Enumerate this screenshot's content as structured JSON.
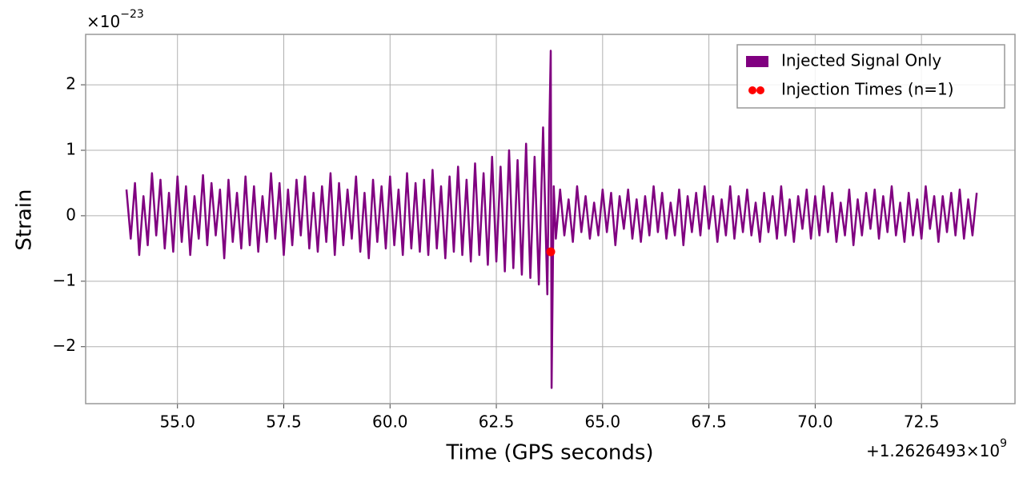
{
  "chart_data": {
    "type": "line",
    "xlabel": "Time (GPS seconds)",
    "ylabel": "Strain",
    "x_offset_base": "+1.2626493×10",
    "x_offset_exponent": "9",
    "y_offset_base": "×10",
    "y_offset_exponent": "−23",
    "xlim": [
      52.84,
      74.7
    ],
    "ylim": [
      -2.87,
      2.77
    ],
    "xticks": [
      {
        "value": 55,
        "label": "55.0"
      },
      {
        "value": 57.5,
        "label": "57.5"
      },
      {
        "value": 60,
        "label": "60.0"
      },
      {
        "value": 62.5,
        "label": "62.5"
      },
      {
        "value": 65,
        "label": "65.0"
      },
      {
        "value": 67.5,
        "label": "67.5"
      },
      {
        "value": 70,
        "label": "70.0"
      },
      {
        "value": 72.5,
        "label": "72.5"
      }
    ],
    "yticks": [
      {
        "value": -2,
        "label": "−2"
      },
      {
        "value": -1,
        "label": "−1"
      },
      0,
      1,
      2
    ],
    "grid": true,
    "legend": "upper right",
    "series": [
      {
        "name": "Injected Signal Only",
        "type": "line",
        "color": "#800080",
        "x": [
          53.8,
          53.9,
          54,
          54.1,
          54.2,
          54.3,
          54.4,
          54.5,
          54.6,
          54.7,
          54.8,
          54.9,
          55,
          55.1,
          55.2,
          55.3,
          55.4,
          55.5,
          55.6,
          55.7,
          55.8,
          55.9,
          56,
          56.1,
          56.2,
          56.3,
          56.4,
          56.5,
          56.6,
          56.7,
          56.8,
          56.9,
          57,
          57.1,
          57.2,
          57.3,
          57.4,
          57.5,
          57.6,
          57.7,
          57.8,
          57.9,
          58,
          58.1,
          58.2,
          58.3,
          58.4,
          58.5,
          58.6,
          58.7,
          58.8,
          58.9,
          59,
          59.1,
          59.2,
          59.3,
          59.4,
          59.5,
          59.6,
          59.7,
          59.8,
          59.9,
          60,
          60.1,
          60.2,
          60.3,
          60.4,
          60.5,
          60.6,
          60.7,
          60.8,
          60.9,
          61,
          61.1,
          61.2,
          61.3,
          61.4,
          61.5,
          61.6,
          61.7,
          61.8,
          61.9,
          62,
          62.1,
          62.2,
          62.3,
          62.4,
          62.5,
          62.6,
          62.7,
          62.8,
          62.9,
          63,
          63.1,
          63.2,
          63.3,
          63.4,
          63.5,
          63.6,
          63.7,
          63.75,
          63.78,
          63.8,
          63.85,
          63.9,
          64,
          64.1,
          64.2,
          64.3,
          64.4,
          64.5,
          64.6,
          64.7,
          64.8,
          64.9,
          65,
          65.1,
          65.2,
          65.3,
          65.4,
          65.5,
          65.6,
          65.7,
          65.8,
          65.9,
          66,
          66.1,
          66.2,
          66.3,
          66.4,
          66.5,
          66.6,
          66.7,
          66.8,
          66.9,
          67,
          67.1,
          67.2,
          67.3,
          67.4,
          67.5,
          67.6,
          67.7,
          67.8,
          67.9,
          68,
          68.1,
          68.2,
          68.3,
          68.4,
          68.5,
          68.6,
          68.7,
          68.8,
          68.9,
          69,
          69.1,
          69.2,
          69.3,
          69.4,
          69.5,
          69.6,
          69.7,
          69.8,
          69.9,
          70,
          70.1,
          70.2,
          70.3,
          70.4,
          70.5,
          70.6,
          70.7,
          70.8,
          70.9,
          71,
          71.1,
          71.2,
          71.3,
          71.4,
          71.5,
          71.6,
          71.7,
          71.8,
          71.9,
          72,
          72.1,
          72.2,
          72.3,
          72.4,
          72.5,
          72.6,
          72.7,
          72.8,
          72.9,
          73,
          73.1,
          73.2,
          73.3,
          73.4,
          73.5,
          73.6,
          73.7,
          73.8
        ],
        "values": [
          0.4,
          -0.35,
          0.5,
          -0.6,
          0.3,
          -0.45,
          0.65,
          -0.3,
          0.55,
          -0.5,
          0.35,
          -0.55,
          0.6,
          -0.4,
          0.45,
          -0.6,
          0.3,
          -0.35,
          0.62,
          -0.45,
          0.5,
          -0.3,
          0.4,
          -0.65,
          0.55,
          -0.4,
          0.35,
          -0.5,
          0.6,
          -0.45,
          0.45,
          -0.55,
          0.3,
          -0.4,
          0.65,
          -0.35,
          0.5,
          -0.6,
          0.4,
          -0.45,
          0.55,
          -0.3,
          0.6,
          -0.5,
          0.35,
          -0.55,
          0.45,
          -0.4,
          0.65,
          -0.6,
          0.5,
          -0.45,
          0.4,
          -0.35,
          0.6,
          -0.55,
          0.35,
          -0.65,
          0.55,
          -0.4,
          0.45,
          -0.5,
          0.6,
          -0.45,
          0.4,
          -0.6,
          0.65,
          -0.5,
          0.5,
          -0.55,
          0.55,
          -0.6,
          0.7,
          -0.5,
          0.45,
          -0.65,
          0.6,
          -0.55,
          0.75,
          -0.6,
          0.55,
          -0.7,
          0.8,
          -0.6,
          0.65,
          -0.75,
          0.9,
          -0.7,
          0.75,
          -0.85,
          1.0,
          -0.8,
          0.85,
          -0.9,
          1.1,
          -0.95,
          0.9,
          -1.05,
          1.35,
          -1.2,
          1.45,
          2.52,
          -2.63,
          0.45,
          -0.35,
          0.4,
          -0.3,
          0.25,
          -0.4,
          0.45,
          -0.25,
          0.3,
          -0.35,
          0.2,
          -0.3,
          0.4,
          -0.25,
          0.35,
          -0.45,
          0.3,
          -0.2,
          0.4,
          -0.35,
          0.25,
          -0.4,
          0.3,
          -0.3,
          0.45,
          -0.25,
          0.35,
          -0.35,
          0.2,
          -0.3,
          0.4,
          -0.45,
          0.3,
          -0.25,
          0.35,
          -0.3,
          0.45,
          -0.2,
          0.3,
          -0.4,
          0.25,
          -0.3,
          0.45,
          -0.35,
          0.3,
          -0.25,
          0.4,
          -0.3,
          0.2,
          -0.4,
          0.35,
          -0.25,
          0.3,
          -0.35,
          0.45,
          -0.3,
          0.25,
          -0.4,
          0.3,
          -0.2,
          0.4,
          -0.35,
          0.3,
          -0.3,
          0.45,
          -0.25,
          0.35,
          -0.4,
          0.2,
          -0.3,
          0.4,
          -0.45,
          0.25,
          -0.3,
          0.35,
          -0.2,
          0.4,
          -0.35,
          0.3,
          -0.25,
          0.45,
          -0.3,
          0.2,
          -0.4,
          0.35,
          -0.3,
          0.25,
          -0.35,
          0.45,
          -0.2,
          0.3,
          -0.4,
          0.3,
          -0.25,
          0.35,
          -0.3,
          0.4,
          -0.35,
          0.25,
          -0.3,
          0.35
        ]
      },
      {
        "name": "Injection Times (n=1)",
        "type": "scatter",
        "color": "#ff0000",
        "x": [
          63.78
        ],
        "values": [
          -0.55
        ]
      }
    ]
  }
}
